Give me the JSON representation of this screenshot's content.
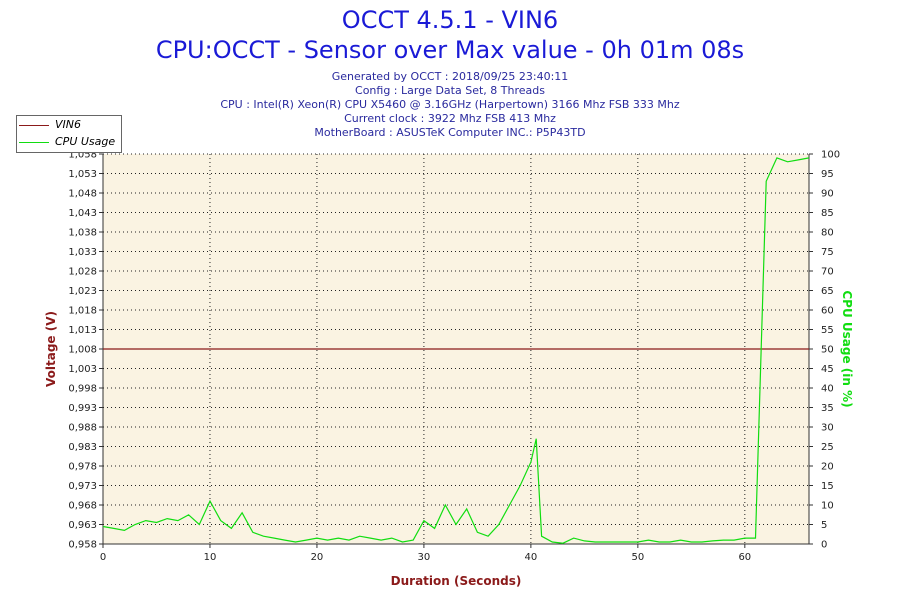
{
  "header": {
    "title_line1": "OCCT 4.5.1 - VIN6",
    "title_line2": "CPU:OCCT - Sensor over Max value - 0h 01m 08s",
    "generated": "Generated by OCCT : 2018/09/25 23:40:11",
    "config": "Config : Large Data Set, 8 Threads",
    "cpu": "CPU : Intel(R) Xeon(R) CPU X5460 @ 3.16GHz (Harpertown) 3166 Mhz FSB 333 Mhz",
    "clock": "Current clock : 3922 Mhz FSB 413 Mhz",
    "motherboard": "MotherBoard : ASUSTeK Computer INC.: P5P43TD"
  },
  "colors": {
    "voltage": "#8b1a1a",
    "cpu": "#11dd11",
    "plot_bg": "#faf3e2",
    "title": "#1a1ad6"
  },
  "chart_data": {
    "type": "line",
    "xlabel": "Duration (Seconds)",
    "ylabel_left": "Voltage (V)",
    "ylabel_right": "CPU Usage (in %)",
    "xlim": [
      0,
      66
    ],
    "ylim_left": [
      0.958,
      1.058
    ],
    "ylim_right": [
      0,
      100
    ],
    "x_ticks": [
      0,
      10,
      20,
      30,
      40,
      50,
      60
    ],
    "y_left_ticks": [
      "0,958",
      "0,963",
      "0,968",
      "0,973",
      "0,978",
      "0,983",
      "0,988",
      "0,993",
      "0,998",
      "1,003",
      "1,008",
      "1,013",
      "1,018",
      "1,023",
      "1,028",
      "1,033",
      "1,038",
      "1,043",
      "1,048",
      "1,053",
      "1,058"
    ],
    "y_right_ticks": [
      0,
      5,
      10,
      15,
      20,
      25,
      30,
      35,
      40,
      45,
      50,
      55,
      60,
      65,
      70,
      75,
      80,
      85,
      90,
      95,
      100
    ],
    "grid": true,
    "legend_position": "top-left",
    "series": [
      {
        "name": "VIN6",
        "axis": "left",
        "x": [
          0,
          66
        ],
        "y": [
          1.008,
          1.008
        ]
      },
      {
        "name": "CPU Usage",
        "axis": "right",
        "x": [
          0,
          1,
          2,
          3,
          4,
          5,
          6,
          7,
          8,
          9,
          10,
          11,
          12,
          13,
          14,
          15,
          16,
          17,
          18,
          19,
          20,
          21,
          22,
          23,
          24,
          25,
          26,
          27,
          28,
          29,
          30,
          31,
          32,
          33,
          34,
          35,
          36,
          37,
          38,
          39,
          40,
          40.5,
          41,
          42,
          43,
          44,
          45,
          46,
          47,
          48,
          49,
          50,
          51,
          52,
          53,
          54,
          55,
          56,
          57,
          58,
          59,
          60,
          61,
          62,
          63,
          64,
          65,
          66
        ],
        "y": [
          4.5,
          4,
          3.5,
          5,
          6,
          5.5,
          6.5,
          6,
          7.5,
          5,
          11,
          6,
          4,
          8,
          3,
          2,
          1.5,
          1,
          0.5,
          1,
          1.5,
          1,
          1.5,
          1,
          2,
          1.5,
          1,
          1.5,
          0.5,
          1,
          6,
          4,
          10,
          5,
          9,
          3,
          2,
          5,
          10,
          15,
          21,
          27,
          2,
          0.5,
          0.2,
          1.5,
          0.8,
          0.5,
          0.5,
          0.5,
          0.5,
          0.5,
          1,
          0.5,
          0.5,
          1,
          0.5,
          0.5,
          0.8,
          1,
          1,
          1.5,
          1.5,
          93,
          99,
          98,
          98.5,
          99
        ]
      }
    ]
  }
}
